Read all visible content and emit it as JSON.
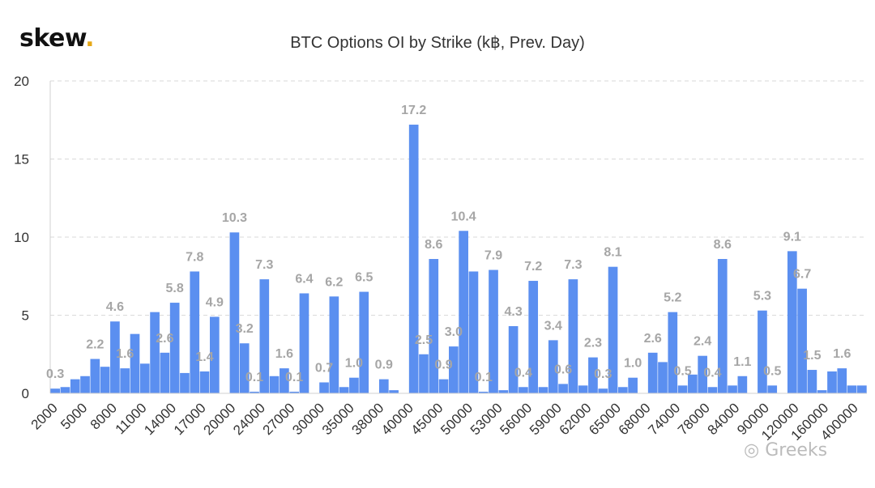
{
  "brand": {
    "name": "skew",
    "dot": "."
  },
  "watermark": "Greeks",
  "chart_data": {
    "type": "bar",
    "title": "BTC Options OI by Strike (k฿, Prev. Day)",
    "xlabel": "",
    "ylabel": "",
    "ylim": [
      0,
      20
    ],
    "yticks": [
      0,
      5,
      10,
      15,
      20
    ],
    "grid": true,
    "bar_color": "#5b8ff0",
    "label_color": "#a6a6a6",
    "x_tick_labels": [
      "2000",
      "5000",
      "8000",
      "11000",
      "14000",
      "17000",
      "20000",
      "24000",
      "27000",
      "30000",
      "35000",
      "38000",
      "40000",
      "45000",
      "50000",
      "53000",
      "56000",
      "59000",
      "62000",
      "65000",
      "68000",
      "74000",
      "78000",
      "84000",
      "90000",
      "120000",
      "160000",
      "400000"
    ],
    "values": [
      0.3,
      0.4,
      0.9,
      1.1,
      2.2,
      1.7,
      4.6,
      1.6,
      3.8,
      1.9,
      5.2,
      2.6,
      5.8,
      1.3,
      7.8,
      1.4,
      4.9,
      0,
      10.3,
      3.2,
      0.1,
      7.3,
      1.1,
      1.6,
      0.1,
      6.4,
      0,
      0.7,
      6.2,
      0.4,
      1.0,
      6.5,
      0,
      0.9,
      0.2,
      0,
      17.2,
      2.5,
      8.6,
      0.9,
      3.0,
      10.4,
      7.8,
      0.1,
      7.9,
      0.2,
      4.3,
      0.4,
      7.2,
      0.4,
      3.4,
      0.6,
      7.3,
      0.5,
      2.3,
      0.3,
      8.1,
      0.4,
      1.0,
      0,
      2.6,
      2.0,
      5.2,
      0.5,
      1.2,
      2.4,
      0.4,
      8.6,
      0.5,
      1.1,
      0,
      5.3,
      0.5,
      0,
      9.1,
      6.7,
      1.5,
      0.2,
      1.4,
      1.6,
      0.5,
      0.5
    ],
    "data_labels": [
      {
        "i": 0,
        "text": "0.3"
      },
      {
        "i": 4,
        "text": "2.2"
      },
      {
        "i": 6,
        "text": "4.6"
      },
      {
        "i": 7,
        "text": "1.6"
      },
      {
        "i": 11,
        "text": "2.6"
      },
      {
        "i": 12,
        "text": "5.8"
      },
      {
        "i": 14,
        "text": "7.8"
      },
      {
        "i": 15,
        "text": "1.4"
      },
      {
        "i": 16,
        "text": "4.9"
      },
      {
        "i": 18,
        "text": "10.3"
      },
      {
        "i": 19,
        "text": "3.2"
      },
      {
        "i": 20,
        "text": "0.1"
      },
      {
        "i": 21,
        "text": "7.3"
      },
      {
        "i": 23,
        "text": "1.6"
      },
      {
        "i": 24,
        "text": "0.1"
      },
      {
        "i": 25,
        "text": "6.4"
      },
      {
        "i": 27,
        "text": "0.7"
      },
      {
        "i": 28,
        "text": "6.2"
      },
      {
        "i": 30,
        "text": "1.0"
      },
      {
        "i": 31,
        "text": "6.5"
      },
      {
        "i": 33,
        "text": "0.9"
      },
      {
        "i": 36,
        "text": "17.2"
      },
      {
        "i": 37,
        "text": "2.5"
      },
      {
        "i": 38,
        "text": "8.6"
      },
      {
        "i": 39,
        "text": "0.9"
      },
      {
        "i": 40,
        "text": "3.0"
      },
      {
        "i": 41,
        "text": "10.4"
      },
      {
        "i": 43,
        "text": "0.1"
      },
      {
        "i": 44,
        "text": "7.9"
      },
      {
        "i": 46,
        "text": "4.3"
      },
      {
        "i": 47,
        "text": "0.4"
      },
      {
        "i": 48,
        "text": "7.2"
      },
      {
        "i": 50,
        "text": "3.4"
      },
      {
        "i": 51,
        "text": "0.6"
      },
      {
        "i": 52,
        "text": "7.3"
      },
      {
        "i": 54,
        "text": "2.3"
      },
      {
        "i": 55,
        "text": "0.3"
      },
      {
        "i": 56,
        "text": "8.1"
      },
      {
        "i": 58,
        "text": "1.0"
      },
      {
        "i": 60,
        "text": "2.6"
      },
      {
        "i": 62,
        "text": "5.2"
      },
      {
        "i": 63,
        "text": "0.5"
      },
      {
        "i": 65,
        "text": "2.4"
      },
      {
        "i": 66,
        "text": "0.4"
      },
      {
        "i": 67,
        "text": "8.6"
      },
      {
        "i": 69,
        "text": "1.1"
      },
      {
        "i": 71,
        "text": "5.3"
      },
      {
        "i": 72,
        "text": "0.5"
      },
      {
        "i": 74,
        "text": "9.1"
      },
      {
        "i": 75,
        "text": "6.7"
      },
      {
        "i": 76,
        "text": "1.5"
      },
      {
        "i": 79,
        "text": "1.6"
      }
    ]
  }
}
